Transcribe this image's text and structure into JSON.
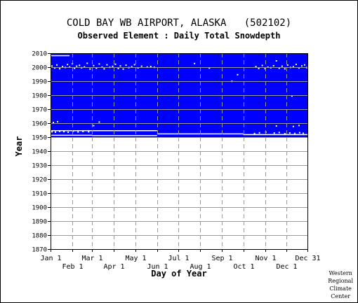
{
  "header": {
    "title": "COLD BAY WB AIRPORT, ALASKA   (502102)",
    "subtitle": "Observed Element : Daily Total Snowdepth"
  },
  "credit": [
    "Western",
    "Regional",
    "Climate",
    "Center"
  ],
  "colors": {
    "data": "#0000ff",
    "gap": "#ffffff",
    "grid": "#9a9a9a",
    "axis": "#000000",
    "background": "#ffffff"
  },
  "chart_data": {
    "type": "heatmap",
    "title": "COLD BAY WB AIRPORT, ALASKA   (502102)",
    "subtitle": "Observed Element : Daily Total Snowdepth",
    "xlabel": "Day of Year",
    "ylabel": "Year",
    "xlim": [
      1,
      365
    ],
    "ylim": [
      1870,
      2010
    ],
    "yticks": [
      1870,
      1880,
      1890,
      1900,
      1910,
      1920,
      1930,
      1940,
      1950,
      1960,
      1970,
      1980,
      1990,
      2000,
      2010
    ],
    "xticks_upper": [
      {
        "label": "Jan 1",
        "day": 1
      },
      {
        "label": "Mar 1",
        "day": 60
      },
      {
        "label": "May 1",
        "day": 121
      },
      {
        "label": "Jul 1",
        "day": 182
      },
      {
        "label": "Sep 1",
        "day": 244
      },
      {
        "label": "Nov 1",
        "day": 305
      },
      {
        "label": "Dec 31",
        "day": 365
      }
    ],
    "xticks_lower": [
      {
        "label": "Feb 1",
        "day": 32
      },
      {
        "label": "Apr 1",
        "day": 91
      },
      {
        "label": "Jun 1",
        "day": 152
      },
      {
        "label": "Aug 1",
        "day": 213
      },
      {
        "label": "Oct 1",
        "day": 274
      },
      {
        "label": "Dec 1",
        "day": 335
      }
    ],
    "grid": true,
    "data_block": {
      "day_start": 1,
      "day_end": 365,
      "year_start": 1950,
      "year_end": 2010
    },
    "gaps": [
      {
        "day_start": 1,
        "day_end": 60,
        "year_start": 1951.3,
        "year_end": 1951.7
      },
      {
        "day_start": 60,
        "day_end": 152,
        "year_start": 1951.0,
        "year_end": 1951.5
      },
      {
        "day_start": 152,
        "day_end": 274,
        "year_start": 1952.3,
        "year_end": 1952.7
      },
      {
        "day_start": 274,
        "day_end": 365,
        "year_start": 1951.8,
        "year_end": 1952.2
      },
      {
        "day_start": 1,
        "day_end": 60,
        "year_start": 1954.6,
        "year_end": 1955.0
      },
      {
        "day_start": 60,
        "day_end": 152,
        "year_start": 1954.6,
        "year_end": 1955.0
      },
      {
        "day_start": 1,
        "day_end": 28,
        "year_start": 2008.2,
        "year_end": 2008.6
      }
    ],
    "missing_points": [
      [
        3,
        1953.8
      ],
      [
        8,
        1953.6
      ],
      [
        14,
        1954.1
      ],
      [
        20,
        1953.9
      ],
      [
        26,
        1953.5
      ],
      [
        33,
        1954.2
      ],
      [
        40,
        1953.7
      ],
      [
        47,
        1954.0
      ],
      [
        55,
        1953.8
      ],
      [
        5,
        1960.5
      ],
      [
        11,
        1961.0
      ],
      [
        62,
        1958.2
      ],
      [
        70,
        1960.8
      ],
      [
        290,
        1952.6
      ],
      [
        297,
        1953.1
      ],
      [
        306,
        1953.6
      ],
      [
        318,
        1952.9
      ],
      [
        325,
        1953.3
      ],
      [
        333,
        1952.5
      ],
      [
        340,
        1953.0
      ],
      [
        347,
        1952.7
      ],
      [
        354,
        1953.2
      ],
      [
        359,
        1952.8
      ],
      [
        321,
        1958.0
      ],
      [
        345,
        1957.6
      ],
      [
        353,
        1958.3
      ],
      [
        3,
        2000.8
      ],
      [
        7,
        1999.4
      ],
      [
        10,
        2001.6
      ],
      [
        14,
        1998.9
      ],
      [
        18,
        2000.4
      ],
      [
        22,
        1999.8
      ],
      [
        25,
        2001.9
      ],
      [
        28,
        2000.1
      ],
      [
        32,
        2002.4
      ],
      [
        35,
        1999.2
      ],
      [
        38,
        2000.7
      ],
      [
        42,
        2001.3
      ],
      [
        45,
        1999.6
      ],
      [
        49,
        2000.2
      ],
      [
        53,
        2002.8
      ],
      [
        57,
        1998.7
      ],
      [
        62,
        2001.1
      ],
      [
        66,
        1999.3
      ],
      [
        70,
        2002.3
      ],
      [
        74,
        2000.0
      ],
      [
        77,
        1998.8
      ],
      [
        81,
        2001.7
      ],
      [
        85,
        1999.9
      ],
      [
        89,
        2000.6
      ],
      [
        93,
        2002.1
      ],
      [
        97,
        1999.1
      ],
      [
        100,
        2000.9
      ],
      [
        104,
        1998.6
      ],
      [
        108,
        2001.4
      ],
      [
        112,
        1999.7
      ],
      [
        116,
        2000.3
      ],
      [
        120,
        2001.8
      ],
      [
        125,
        1999.5
      ],
      [
        130,
        2000.7
      ],
      [
        138,
        2000.1
      ],
      [
        143,
        2000.5
      ],
      [
        148,
        1999.9
      ],
      [
        205,
        2002.6
      ],
      [
        226,
        1999.4
      ],
      [
        292,
        2000.4
      ],
      [
        296,
        1999.1
      ],
      [
        301,
        2001.2
      ],
      [
        305,
        1998.9
      ],
      [
        309,
        2000.0
      ],
      [
        313,
        1999.6
      ],
      [
        317,
        2001.0
      ],
      [
        321,
        2004.5
      ],
      [
        325,
        1999.3
      ],
      [
        329,
        2000.7
      ],
      [
        333,
        1998.8
      ],
      [
        337,
        2001.5
      ],
      [
        341,
        1999.8
      ],
      [
        345,
        2000.3
      ],
      [
        349,
        2002.0
      ],
      [
        353,
        1999.4
      ],
      [
        357,
        2000.9
      ],
      [
        361,
        2001.6
      ],
      [
        364,
        1999.7
      ],
      [
        258,
        1989.9
      ],
      [
        266,
        1994.6
      ],
      [
        343,
        1979.4
      ]
    ]
  }
}
